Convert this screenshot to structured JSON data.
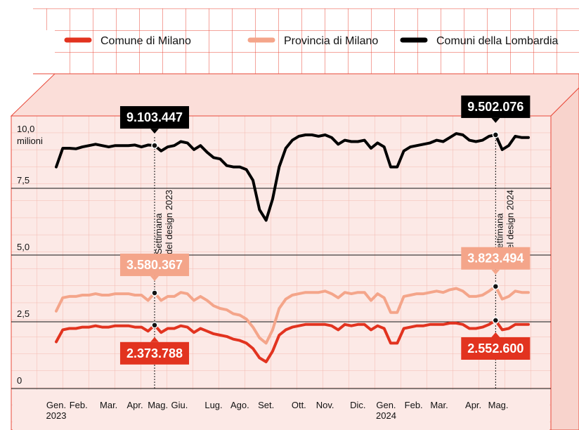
{
  "chart_data": {
    "type": "line",
    "y_unit": "milioni",
    "x": [
      0,
      1,
      2,
      3,
      4,
      5,
      6,
      7,
      8,
      9,
      10,
      11,
      12,
      13,
      14,
      15,
      16,
      17,
      18,
      19,
      20,
      21,
      22,
      23,
      24,
      25,
      26,
      27,
      28,
      29,
      30,
      31,
      32,
      33,
      34,
      35,
      36,
      37,
      38,
      39,
      40,
      41,
      42,
      43,
      44,
      45,
      46,
      47,
      48,
      49,
      50,
      51,
      52,
      53,
      54,
      55,
      56,
      57,
      58,
      59,
      60,
      61,
      62,
      63,
      64,
      65,
      66,
      67,
      68,
      69,
      70,
      71,
      72
    ],
    "xlim": [
      0,
      72
    ],
    "xticks": [
      {
        "value": 0,
        "label": "Gen.\n2023"
      },
      {
        "value": 3.4,
        "label": "Feb."
      },
      {
        "value": 8,
        "label": "Mar."
      },
      {
        "value": 12,
        "label": "Apr."
      },
      {
        "value": 15.5,
        "label": "Mag."
      },
      {
        "value": 18.8,
        "label": "Giu."
      },
      {
        "value": 24,
        "label": "Lug."
      },
      {
        "value": 28,
        "label": "Ago."
      },
      {
        "value": 32,
        "label": "Set."
      },
      {
        "value": 37,
        "label": "Ott."
      },
      {
        "value": 41,
        "label": "Nov."
      },
      {
        "value": 46,
        "label": "Dic."
      },
      {
        "value": 50.3,
        "label": "Gen.\n2024"
      },
      {
        "value": 54.5,
        "label": "Feb."
      },
      {
        "value": 58.4,
        "label": "Mar."
      },
      {
        "value": 63.6,
        "label": "Apr."
      },
      {
        "value": 67.4,
        "label": "Mag."
      }
    ],
    "ylim": [
      0,
      10
    ],
    "yticks": [
      0,
      {
        "value": 2.5,
        "label": "2,5"
      },
      {
        "value": 5,
        "label": "5,0"
      },
      {
        "value": 7.5,
        "label": "7,5"
      },
      {
        "value": 10,
        "label": "10,0"
      }
    ],
    "grid": true,
    "series": [
      {
        "name": "Comune di Milano",
        "color": "#e2331f",
        "values": [
          1.75,
          2.2,
          2.25,
          2.25,
          2.3,
          2.3,
          2.35,
          2.3,
          2.3,
          2.35,
          2.35,
          2.35,
          2.3,
          2.3,
          2.15,
          2.373788,
          2.1,
          2.25,
          2.25,
          2.35,
          2.3,
          2.1,
          2.25,
          2.15,
          2.05,
          2.0,
          1.95,
          1.85,
          1.8,
          1.7,
          1.5,
          1.15,
          1.0,
          1.4,
          2.0,
          2.2,
          2.3,
          2.35,
          2.4,
          2.4,
          2.4,
          2.4,
          2.35,
          2.2,
          2.4,
          2.35,
          2.4,
          2.4,
          2.2,
          2.35,
          2.25,
          1.7,
          1.7,
          2.25,
          2.3,
          2.35,
          2.35,
          2.4,
          2.4,
          2.4,
          2.45,
          2.45,
          2.4,
          2.25,
          2.25,
          2.3,
          2.4,
          2.5526,
          2.2,
          2.25,
          2.4,
          2.4,
          2.4
        ],
        "value_labels": {
          "15": "2.373.788",
          "67": "2.552.600"
        }
      },
      {
        "name": "Provincia di Milano",
        "color": "#f4a58a",
        "values": [
          2.9,
          3.4,
          3.45,
          3.45,
          3.5,
          3.5,
          3.55,
          3.5,
          3.5,
          3.55,
          3.55,
          3.55,
          3.5,
          3.5,
          3.3,
          3.580367,
          3.3,
          3.45,
          3.45,
          3.6,
          3.55,
          3.3,
          3.45,
          3.3,
          3.1,
          3.0,
          2.95,
          2.8,
          2.75,
          2.6,
          2.3,
          1.9,
          1.7,
          2.2,
          3.0,
          3.35,
          3.5,
          3.55,
          3.6,
          3.6,
          3.6,
          3.65,
          3.55,
          3.4,
          3.6,
          3.55,
          3.6,
          3.6,
          3.3,
          3.55,
          3.4,
          2.85,
          2.85,
          3.45,
          3.5,
          3.55,
          3.55,
          3.6,
          3.65,
          3.6,
          3.7,
          3.75,
          3.65,
          3.45,
          3.45,
          3.5,
          3.65,
          3.823494,
          3.35,
          3.45,
          3.65,
          3.6,
          3.6
        ],
        "value_labels": {
          "15": "3.580.367",
          "67": "3.823.494"
        }
      },
      {
        "name": "Comuni della Lombardia",
        "color": "#000000",
        "values": [
          8.3,
          9.0,
          9.0,
          8.98,
          9.05,
          9.1,
          9.15,
          9.1,
          9.05,
          9.1,
          9.1,
          9.1,
          9.12,
          9.05,
          9.12,
          9.103447,
          8.9,
          9.05,
          9.1,
          9.25,
          9.2,
          8.95,
          9.1,
          8.85,
          8.65,
          8.6,
          8.35,
          8.3,
          8.3,
          8.2,
          7.8,
          6.7,
          6.3,
          7.1,
          8.3,
          9.0,
          9.3,
          9.45,
          9.5,
          9.5,
          9.45,
          9.5,
          9.4,
          9.15,
          9.3,
          9.25,
          9.25,
          9.3,
          9.0,
          9.2,
          9.05,
          8.3,
          8.3,
          8.9,
          9.05,
          9.1,
          9.15,
          9.2,
          9.3,
          9.25,
          9.4,
          9.55,
          9.5,
          9.3,
          9.25,
          9.3,
          9.45,
          9.502076,
          8.95,
          9.1,
          9.45,
          9.4,
          9.4
        ],
        "value_labels": {
          "15": "9.103.447",
          "67": "9.502.076"
        }
      }
    ],
    "annotations": [
      {
        "x": 15,
        "label": "Settimana\ndel design 2023"
      },
      {
        "x": 67,
        "label": "Settimana\ndel design 2024"
      }
    ]
  }
}
